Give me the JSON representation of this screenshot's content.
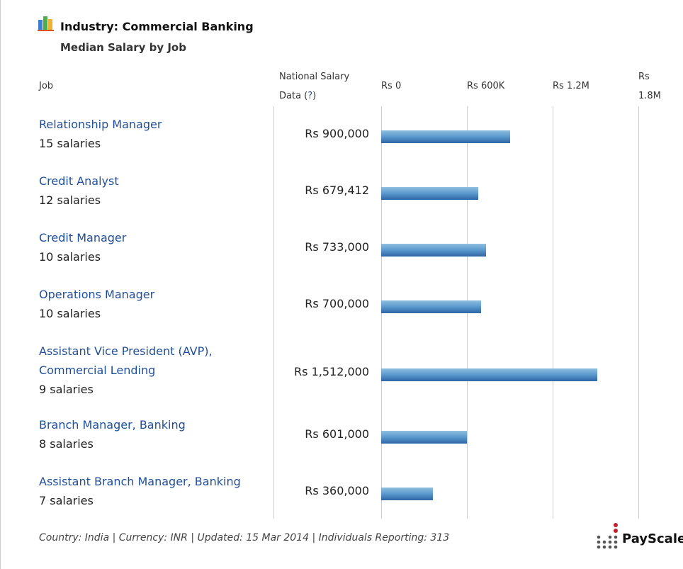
{
  "header": {
    "title": "Industry: Commercial Banking",
    "subtitle": "Median Salary by Job",
    "col_job": "Job",
    "col_salary_line1": "National Salary",
    "col_salary_line2": "Data (",
    "help": "?",
    "col_salary_close": ")"
  },
  "chart_data": {
    "type": "bar",
    "orientation": "horizontal",
    "title": "Median Salary by Job",
    "xlim": [
      0,
      1800000
    ],
    "ticks": [
      {
        "value": 0,
        "label": "Rs 0"
      },
      {
        "value": 600000,
        "label": "Rs 600K"
      },
      {
        "value": 1200000,
        "label": "Rs 1.2M"
      },
      {
        "value": 1800000,
        "label": "Rs 1.8M"
      }
    ],
    "rows": [
      {
        "job": "Relationship Manager",
        "count": "15 salaries",
        "value": 900000,
        "label": "Rs 900,000"
      },
      {
        "job": "Credit Analyst",
        "count": "12 salaries",
        "value": 679412,
        "label": "Rs 679,412"
      },
      {
        "job": "Credit Manager",
        "count": "10 salaries",
        "value": 733000,
        "label": "Rs 733,000"
      },
      {
        "job": "Operations Manager",
        "count": "10 salaries",
        "value": 700000,
        "label": "Rs 700,000"
      },
      {
        "job": "Assistant Vice President (AVP), Commercial Lending",
        "count": "9 salaries",
        "value": 1512000,
        "label": "Rs 1,512,000"
      },
      {
        "job": "Branch Manager, Banking",
        "count": "8 salaries",
        "value": 601000,
        "label": "Rs 601,000"
      },
      {
        "job": "Assistant Branch Manager, Banking",
        "count": "7 salaries",
        "value": 360000,
        "label": "Rs 360,000"
      }
    ]
  },
  "footer": "Country: India | Currency: INR | Updated: 15 Mar 2014 | Individuals Reporting: 313",
  "logo": "PayScale"
}
